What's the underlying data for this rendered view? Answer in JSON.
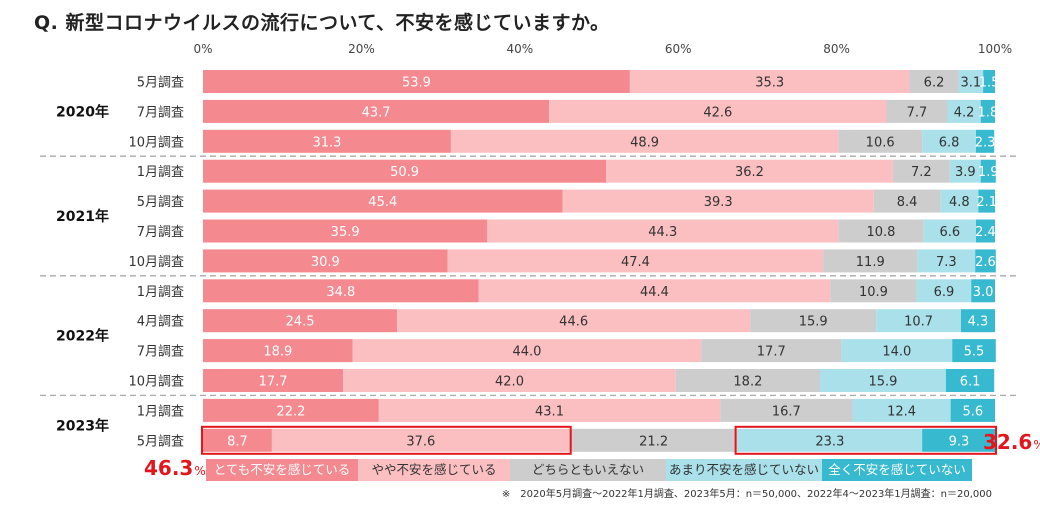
{
  "title": "Q.  新型コロナウイルスの流行について、不安を感じていますか。",
  "chart_data": {
    "type": "bar",
    "orientation": "horizontal",
    "stacked": true,
    "xlim": [
      0,
      100
    ],
    "ticks": [
      "0%",
      "20%",
      "40%",
      "60%",
      "80%",
      "100%"
    ],
    "tick_values": [
      0,
      20,
      40,
      60,
      80,
      100
    ],
    "series": [
      {
        "name": "とても不安を感じている",
        "color": "#f4898f",
        "text_color": "#ffffff"
      },
      {
        "name": "やや不安を感じている",
        "color": "#fbbfc2",
        "text_color": "#333333"
      },
      {
        "name": "どちらともいえない",
        "color": "#cdcdcd",
        "text_color": "#333333"
      },
      {
        "name": "あまり不安を感じていない",
        "color": "#a9e0ea",
        "text_color": "#333333"
      },
      {
        "name": "全く不安を感じていない",
        "color": "#37b9cf",
        "text_color": "#ffffff"
      }
    ],
    "groups": [
      {
        "year": "2020年",
        "rows": [
          {
            "label": "5月調査",
            "values": [
              53.9,
              35.3,
              6.2,
              3.1,
              1.5
            ]
          },
          {
            "label": "7月調査",
            "values": [
              43.7,
              42.6,
              7.7,
              4.2,
              1.8
            ]
          },
          {
            "label": "10月調査",
            "values": [
              31.3,
              48.9,
              10.6,
              6.8,
              2.3
            ]
          }
        ]
      },
      {
        "year": "2021年",
        "rows": [
          {
            "label": "1月調査",
            "values": [
              50.9,
              36.2,
              7.2,
              3.9,
              1.9
            ]
          },
          {
            "label": "5月調査",
            "values": [
              45.4,
              39.3,
              8.4,
              4.8,
              2.1
            ]
          },
          {
            "label": "7月調査",
            "values": [
              35.9,
              44.3,
              10.8,
              6.6,
              2.4
            ]
          },
          {
            "label": "10月調査",
            "values": [
              30.9,
              47.4,
              11.9,
              7.3,
              2.6
            ]
          }
        ]
      },
      {
        "year": "2022年",
        "rows": [
          {
            "label": "1月調査",
            "values": [
              34.8,
              44.4,
              10.9,
              6.9,
              3.0
            ]
          },
          {
            "label": "4月調査",
            "values": [
              24.5,
              44.6,
              15.9,
              10.7,
              4.3
            ]
          },
          {
            "label": "7月調査",
            "values": [
              18.9,
              44.0,
              17.7,
              14.0,
              5.5
            ]
          },
          {
            "label": "10月調査",
            "values": [
              17.7,
              42.0,
              18.2,
              15.9,
              6.1
            ]
          }
        ]
      },
      {
        "year": "2023年",
        "rows": [
          {
            "label": "1月調査",
            "values": [
              22.2,
              43.1,
              16.7,
              12.4,
              5.6
            ]
          },
          {
            "label": "5月調査",
            "values": [
              8.7,
              37.6,
              21.2,
              23.3,
              9.3
            ]
          }
        ]
      }
    ],
    "highlight_color": "#e4161d",
    "summary_left": {
      "value": "46.3",
      "unit": "%"
    },
    "summary_right": {
      "value": "32.6",
      "unit": "%"
    }
  },
  "footnote": "※　2020年5月調査〜2022年1月調査、2023年5月：n＝50,000、2022年4〜2023年1月調査：n＝20,000"
}
